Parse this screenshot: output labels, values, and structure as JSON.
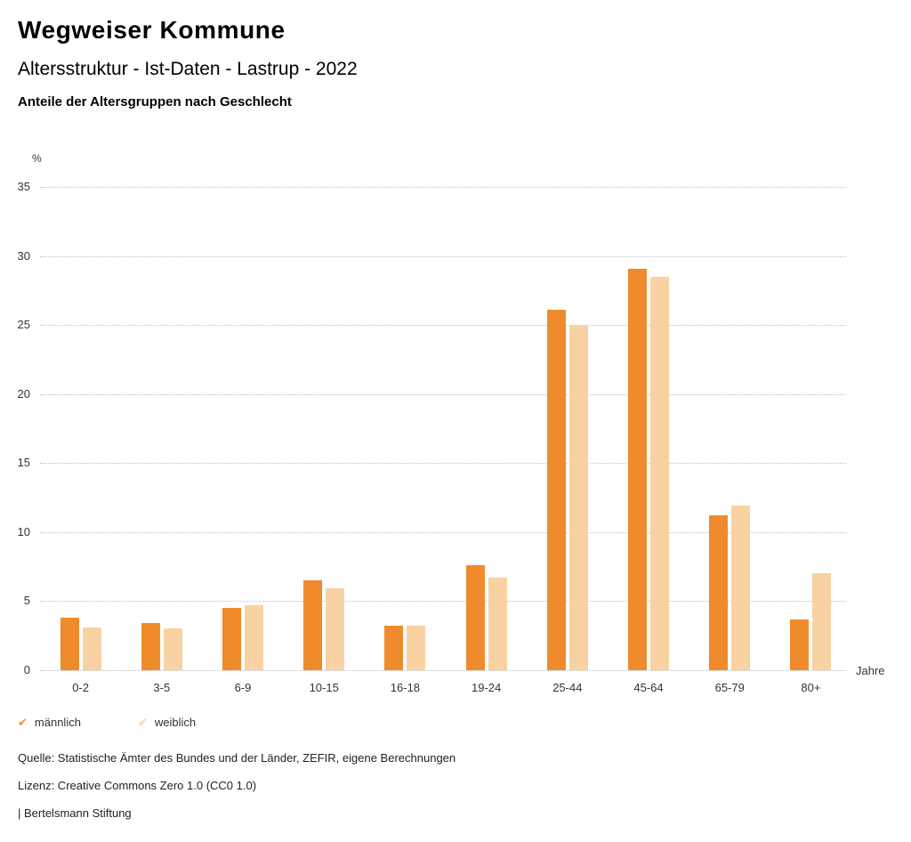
{
  "header": {
    "title": "Wegweiser Kommune",
    "subtitle": "Altersstruktur - Ist-Daten - Lastrup - 2022",
    "chart_heading": "Anteile der Altersgruppen nach Geschlecht"
  },
  "chart_data": {
    "type": "bar",
    "title": "Anteile der Altersgruppen nach Geschlecht",
    "unit_label": "%",
    "x_axis_label": "Jahre",
    "categories": [
      "0-2",
      "3-5",
      "6-9",
      "10-15",
      "16-18",
      "19-24",
      "25-44",
      "45-64",
      "65-79",
      "80+"
    ],
    "series": [
      {
        "name": "männlich",
        "color": "#ef8b2c",
        "values": [
          3.8,
          3.4,
          4.5,
          6.5,
          3.2,
          7.6,
          26.1,
          29.1,
          11.2,
          3.7
        ]
      },
      {
        "name": "weiblich",
        "color": "#f8d2a2",
        "values": [
          3.1,
          3.0,
          4.7,
          5.9,
          3.2,
          6.7,
          25.0,
          28.5,
          11.9,
          7.0
        ]
      }
    ],
    "ylim": [
      0,
      35
    ],
    "yticks": [
      0,
      5,
      10,
      15,
      20,
      25,
      30,
      35
    ],
    "grid": "horizontal dotted",
    "legend_position": "bottom-left"
  },
  "footer": {
    "source": "Quelle: Statistische Ämter des Bundes und der Länder, ZEFIR, eigene Berechnungen",
    "license": "Lizenz: Creative Commons Zero 1.0 (CC0 1.0)",
    "attribution": "| Bertelsmann Stiftung"
  }
}
